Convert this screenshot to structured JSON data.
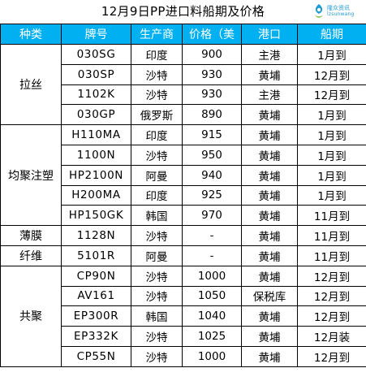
{
  "title": "12月9日PP进口料船期及价格",
  "logo": {
    "name": "隆众资讯",
    "text": "隆众资讯",
    "sub": "lz​sunwang"
  },
  "headers": [
    "种类",
    "牌号",
    "生产商",
    "价格（美",
    "港口",
    "船期"
  ],
  "groups": [
    {
      "category": "拉丝",
      "rows": [
        {
          "grade": "030SG",
          "producer": "印度",
          "price": "900",
          "port": "主港",
          "ship": "1月到"
        },
        {
          "grade": "030SP",
          "producer": "沙特",
          "price": "930",
          "port": "黄埔",
          "ship": "12月到"
        },
        {
          "grade": "1102K",
          "producer": "沙特",
          "price": "930",
          "port": "主港",
          "ship": "12月到"
        },
        {
          "grade": "030GP",
          "producer": "俄罗斯",
          "price": "890",
          "port": "黄埔",
          "ship": "1月到"
        }
      ]
    },
    {
      "category": "均聚注塑",
      "rows": [
        {
          "grade": "H110MA",
          "producer": "印度",
          "price": "915",
          "port": "黄埔",
          "ship": "1月到"
        },
        {
          "grade": "1100N",
          "producer": "沙特",
          "price": "950",
          "port": "黄埔",
          "ship": "1月到"
        },
        {
          "grade": "HP2100N",
          "producer": "阿曼",
          "price": "940",
          "port": "黄埔",
          "ship": "1月到"
        },
        {
          "grade": "H200MA",
          "producer": "印度",
          "price": "925",
          "port": "黄埔",
          "ship": "1月到"
        },
        {
          "grade": "HP150GK",
          "producer": "韩国",
          "price": "970",
          "port": "黄埔",
          "ship": "11月到"
        }
      ]
    },
    {
      "category": "薄膜",
      "rows": [
        {
          "grade": "1128N",
          "producer": "沙特",
          "price": "-",
          "port": "黄埔",
          "ship": "11月到"
        }
      ]
    },
    {
      "category": "纤维",
      "rows": [
        {
          "grade": "5101R",
          "producer": "阿曼",
          "price": "-",
          "port": "黄埔",
          "ship": "11月到"
        }
      ]
    },
    {
      "category": "共聚",
      "rows": [
        {
          "grade": "CP90N",
          "producer": "沙特",
          "price": "1000",
          "port": "黄埔",
          "ship": "12月到"
        },
        {
          "grade": "AV161",
          "producer": "沙特",
          "price": "1050",
          "port": "保税库",
          "ship": "12月到"
        },
        {
          "grade": "EP300R",
          "producer": "韩国",
          "price": "1040",
          "port": "黄埔",
          "ship": "12月到"
        },
        {
          "grade": "EP332K",
          "producer": "沙特",
          "price": "1025",
          "port": "黄埔",
          "ship": "12月装"
        },
        {
          "grade": "CP55N",
          "producer": "沙特",
          "price": "1000",
          "port": "黄埔",
          "ship": "12月到"
        }
      ]
    }
  ],
  "colors": {
    "header_bg": "#00b0f0",
    "header_text": "#ffffff",
    "logo": "#1e9bd7"
  }
}
